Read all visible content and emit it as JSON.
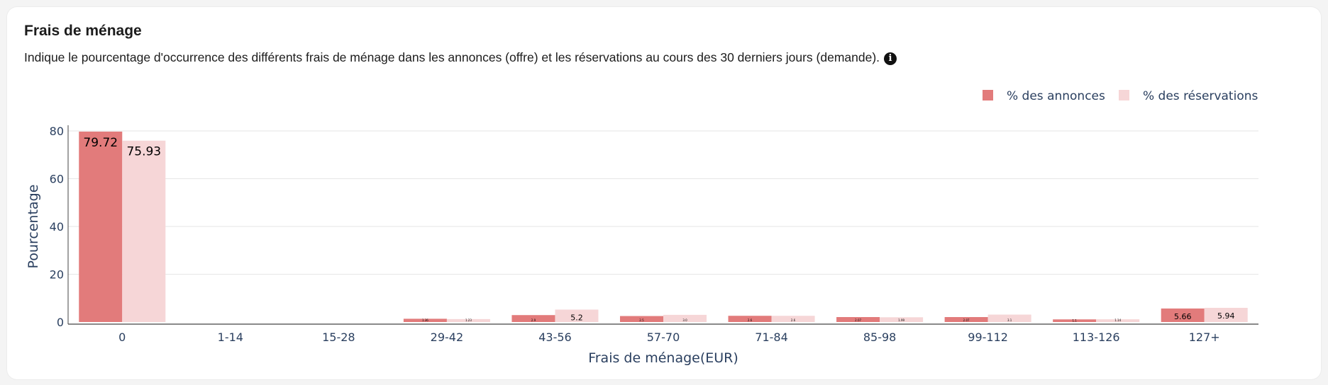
{
  "card": {
    "title": "Frais de ménage",
    "description": "Indique le pourcentage d'occurrence des différents frais de ménage dans les annonces (offre) et les réservations au cours des 30 derniers jours (demande).",
    "info_icon": "info-icon"
  },
  "colors": {
    "annonces": "#e27b7b",
    "reservations": "#f6d6d7",
    "axis_text": "#2a3f5f",
    "grid": "#e6e6e6"
  },
  "chart_data": {
    "type": "bar",
    "categories": [
      "0",
      "1-14",
      "15-28",
      "29-42",
      "43-56",
      "57-70",
      "71-84",
      "85-98",
      "99-112",
      "113-126",
      "127+"
    ],
    "series": [
      {
        "name": "% des annonces",
        "values": [
          79.72,
          0,
          0,
          1.36,
          2.9,
          2.5,
          2.6,
          2.07,
          2.07,
          1.1,
          5.66
        ]
      },
      {
        "name": "% des réservations",
        "values": [
          75.93,
          0,
          0,
          1.23,
          5.2,
          3.0,
          2.6,
          1.99,
          3.1,
          1.14,
          5.94
        ]
      }
    ],
    "data_labels": [
      [
        "79.72",
        "",
        "",
        "1.36",
        "2.9",
        "2.5",
        "2.6",
        "2.07",
        "2.07",
        "1.1",
        "5.66"
      ],
      [
        "75.93",
        "",
        "",
        "1.23",
        "5.2",
        "3.0",
        "2.6",
        "1.99",
        "3.1",
        "1.14",
        "5.94"
      ]
    ],
    "xlabel": "Frais de ménage(EUR)",
    "ylabel": "Pourcentage",
    "ylim": [
      0,
      80
    ],
    "yticks": [
      0,
      20,
      40,
      60,
      80
    ],
    "grid": true,
    "legend_position": "top-right"
  }
}
